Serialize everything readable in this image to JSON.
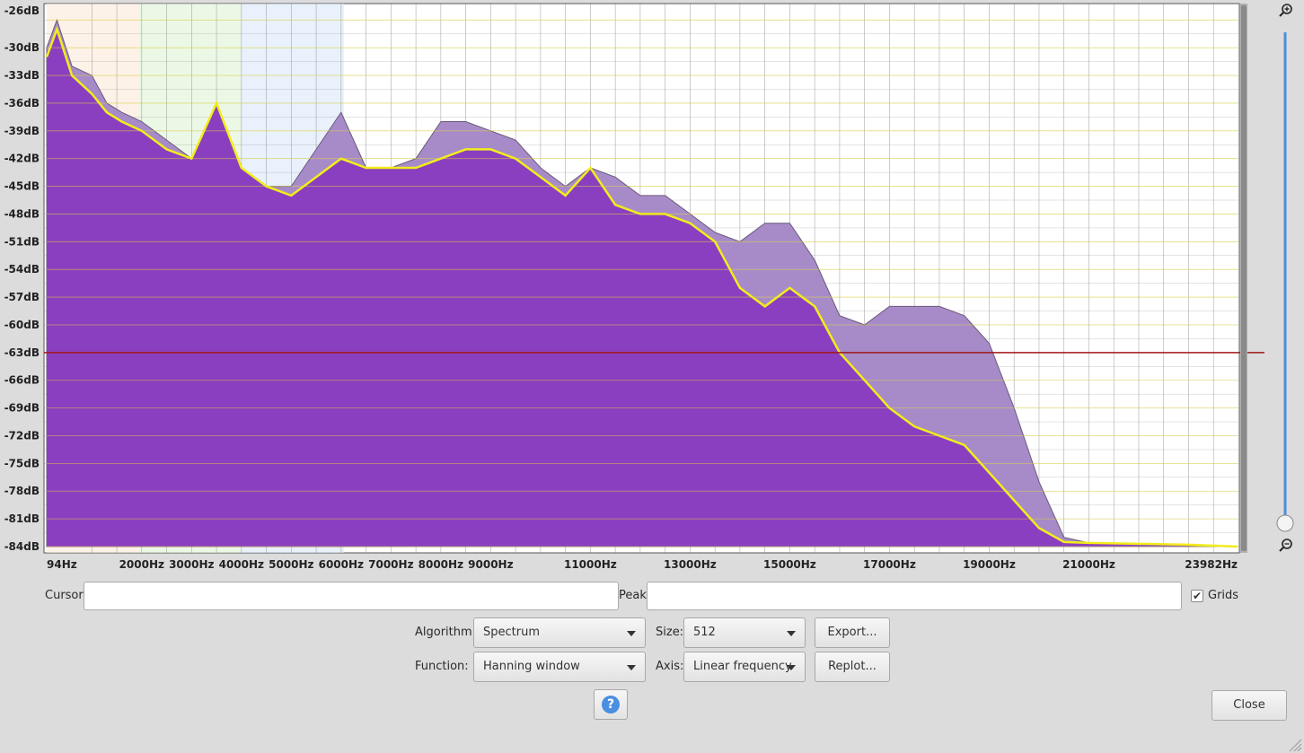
{
  "cursor": {
    "label": "Cursor:",
    "value": ""
  },
  "peak": {
    "label": "Peak:",
    "value": ""
  },
  "grids": {
    "label": "Grids",
    "checked": true
  },
  "algorithm": {
    "label": "Algorithm:",
    "value": "Spectrum"
  },
  "size": {
    "label": "Size:",
    "value": "512"
  },
  "function": {
    "label": "Function:",
    "value": "Hanning window"
  },
  "axis": {
    "label": "Axis:",
    "value": "Linear frequency"
  },
  "buttons": {
    "export": "Export...",
    "replot": "Replot...",
    "close": "Close",
    "help": "?"
  },
  "zoom": {
    "in_icon": "zoom-in-icon",
    "out_icon": "zoom-out-icon"
  },
  "colors": {
    "fill": "#8a3fc0",
    "back_fill": "#a78bc9",
    "peak_line": "#f2ee1a",
    "cursor_line": "#a01818",
    "grid": "#888888"
  },
  "chart_data": {
    "type": "area",
    "x_unit": "Hz",
    "xlim": [
      94,
      23982
    ],
    "ylim": [
      -84,
      -26
    ],
    "grid": true,
    "x_ticks": [
      "94Hz",
      "2000Hz",
      "3000Hz",
      "4000Hz",
      "5000Hz",
      "6000Hz",
      "7000Hz",
      "8000Hz",
      "9000Hz",
      "11000Hz",
      "13000Hz",
      "15000Hz",
      "17000Hz",
      "19000Hz",
      "21000Hz",
      "23982Hz"
    ],
    "y_ticks": [
      "-26dB",
      "-30dB",
      "-33dB",
      "-36dB",
      "-39dB",
      "-42dB",
      "-45dB",
      "-48dB",
      "-51dB",
      "-54dB",
      "-57dB",
      "-60dB",
      "-63dB",
      "-66dB",
      "-69dB",
      "-72dB",
      "-75dB",
      "-78dB",
      "-81dB",
      "-84dB"
    ],
    "cursor_db": -63,
    "series": [
      {
        "x": [
          94,
          300,
          600,
          1000,
          1300,
          1600,
          2000,
          2500,
          3000,
          3500,
          4000,
          4500,
          5000,
          5500,
          6000,
          6500,
          7000,
          7500,
          8000,
          8500,
          9000,
          9500,
          10000,
          10500,
          11000,
          11500,
          12000,
          12500,
          13000,
          13500,
          14000,
          14500,
          15000,
          15500,
          16000,
          16500,
          17000,
          17500,
          18000,
          18500,
          19000,
          19500,
          20000,
          20500,
          21000,
          22000,
          23000,
          23982
        ],
        "values": [
          -30,
          -27,
          -32,
          -33,
          -36,
          -37,
          -38,
          -40,
          -42,
          -36,
          -43,
          -45,
          -45,
          -41,
          -37,
          -43,
          -43,
          -42,
          -38,
          -38,
          -39,
          -40,
          -43,
          -45,
          -43,
          -44,
          -46,
          -46,
          -48,
          -50,
          -51,
          -49,
          -49,
          -53,
          -59,
          -60,
          -58,
          -58,
          -58,
          -59,
          -62,
          -69,
          -77,
          -83,
          -83.6,
          -83.7,
          -83.8,
          -84
        ]
      },
      {
        "x": [
          94,
          300,
          600,
          1000,
          1300,
          1600,
          2000,
          2500,
          3000,
          3500,
          4000,
          4500,
          5000,
          5500,
          6000,
          6500,
          7000,
          7500,
          8000,
          8500,
          9000,
          9500,
          10000,
          10500,
          11000,
          11500,
          12000,
          12500,
          13000,
          13500,
          14000,
          14500,
          15000,
          15500,
          16000,
          16500,
          17000,
          17500,
          18000,
          18500,
          19000,
          19500,
          20000,
          20500,
          21000,
          22000,
          23000,
          23982
        ],
        "values": [
          -31,
          -28,
          -33,
          -35,
          -37,
          -38,
          -39,
          -41,
          -42,
          -36,
          -43,
          -45,
          -46,
          -44,
          -42,
          -43,
          -43,
          -43,
          -42,
          -41,
          -41,
          -42,
          -44,
          -46,
          -43,
          -47,
          -48,
          -48,
          -49,
          -51,
          -56,
          -58,
          -56,
          -58,
          -63,
          -66,
          -69,
          -71,
          -72,
          -73,
          -76,
          -79,
          -82,
          -83.5,
          -83.6,
          -83.7,
          -83.8,
          -84
        ]
      }
    ]
  }
}
